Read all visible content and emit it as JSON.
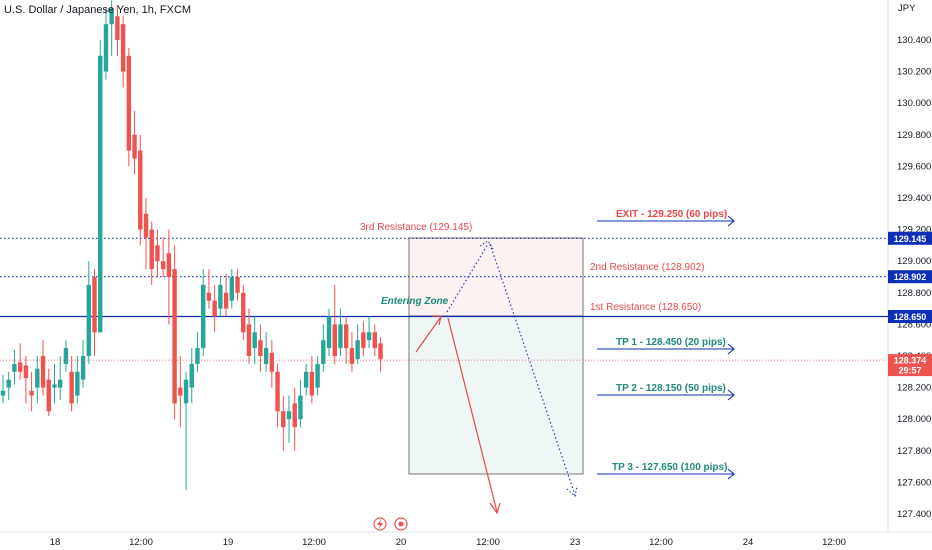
{
  "chart_data": {
    "type": "candlestick",
    "title": "U.S. Dollar / Japanese Yen, 1h, FXCM",
    "currency": "JPY",
    "y_ticks": [
      "130.400",
      "130.200",
      "130.000",
      "129.800",
      "129.600",
      "129.400",
      "129.200",
      "129.000",
      "128.800",
      "128.600",
      "128.400",
      "128.200",
      "128.000",
      "127.800",
      "127.600",
      "127.400"
    ],
    "x_ticks": [
      "18",
      "12:00",
      "19",
      "12:00",
      "20",
      "12:00",
      "23",
      "12:00",
      "24",
      "12:00"
    ],
    "ylim": [
      127.3,
      130.6
    ],
    "last_price": "128.374",
    "countdown": "29:57",
    "colors": {
      "up": "#26a69a",
      "down": "#ef5350",
      "level": "#0d2fb8",
      "zone": "#1d8a7d",
      "res": "#e84848"
    },
    "levels": [
      {
        "id": "r3",
        "value": 129.145,
        "label": "129.145",
        "style": "dotted"
      },
      {
        "id": "r2",
        "value": 128.902,
        "label": "128.902",
        "style": "dotted"
      },
      {
        "id": "r1",
        "value": 128.65,
        "label": "128.650",
        "style": "solid"
      }
    ],
    "annotations": {
      "r3": "3rd Resistance (129.145)",
      "r2": "2nd Resistance (128.902)",
      "r1": "1st Resistance (128.650)",
      "entry": "Entering Zone",
      "exit": "EXIT - 129.250 (60 pips)",
      "tp1": "TP 1 - 128.450 (20 pips)",
      "tp2": "TP 2 - 128.150 (50 pips)",
      "tp3": "TP 3 - 127.650 (100 pips)"
    },
    "candles": [
      [
        128.15,
        128.18,
        128.28,
        128.1
      ],
      [
        128.2,
        128.25,
        128.3,
        128.12
      ],
      [
        128.3,
        128.35,
        128.44,
        128.22
      ],
      [
        128.36,
        128.3,
        128.48,
        128.25
      ],
      [
        128.34,
        128.26,
        128.4,
        128.1
      ],
      [
        128.18,
        128.15,
        128.3,
        128.05
      ],
      [
        128.2,
        128.32,
        128.4,
        128.1
      ],
      [
        128.4,
        128.2,
        128.5,
        128.15
      ],
      [
        128.25,
        128.05,
        128.32,
        128.02
      ],
      [
        128.2,
        128.22,
        128.35,
        128.1
      ],
      [
        128.2,
        128.25,
        128.4,
        128.12
      ],
      [
        128.35,
        128.45,
        128.5,
        128.3
      ],
      [
        128.3,
        128.1,
        128.4,
        128.05
      ],
      [
        128.15,
        128.3,
        128.4,
        128.1
      ],
      [
        128.25,
        128.4,
        128.5,
        128.2
      ],
      [
        128.4,
        128.85,
        129.0,
        128.35
      ],
      [
        128.9,
        128.55,
        128.95,
        128.4
      ],
      [
        128.55,
        130.3,
        130.4,
        128.55
      ],
      [
        130.2,
        130.5,
        130.6,
        130.15
      ],
      [
        130.5,
        130.6,
        130.65,
        130.3
      ],
      [
        130.55,
        130.4,
        130.62,
        130.3
      ],
      [
        130.5,
        130.2,
        130.55,
        130.1
      ],
      [
        130.3,
        129.7,
        130.35,
        129.6
      ],
      [
        129.8,
        129.65,
        129.95,
        129.55
      ],
      [
        129.7,
        129.2,
        129.8,
        129.1
      ],
      [
        129.3,
        129.15,
        129.4,
        128.95
      ],
      [
        129.2,
        128.95,
        129.25,
        128.85
      ],
      [
        129.1,
        129.0,
        129.2,
        128.9
      ],
      [
        129.0,
        128.95,
        129.15,
        128.9
      ],
      [
        129.05,
        128.9,
        129.2,
        128.6
      ],
      [
        128.95,
        128.1,
        129.1,
        128.0
      ],
      [
        128.2,
        128.15,
        128.4,
        127.95
      ],
      [
        128.1,
        128.25,
        128.3,
        127.55
      ],
      [
        128.2,
        128.35,
        128.45,
        128.1
      ],
      [
        128.35,
        128.45,
        128.55,
        128.3
      ],
      [
        128.45,
        128.85,
        128.95,
        128.4
      ],
      [
        128.8,
        128.75,
        128.95,
        128.7
      ],
      [
        128.75,
        128.65,
        128.85,
        128.55
      ],
      [
        128.7,
        128.85,
        128.9,
        128.65
      ],
      [
        128.8,
        128.7,
        128.92,
        128.65
      ],
      [
        128.75,
        128.9,
        128.95,
        128.7
      ],
      [
        128.9,
        128.8,
        128.95,
        128.75
      ],
      [
        128.8,
        128.55,
        128.85,
        128.5
      ],
      [
        128.6,
        128.4,
        128.7,
        128.35
      ],
      [
        128.45,
        128.55,
        128.65,
        128.35
      ],
      [
        128.5,
        128.4,
        128.6,
        128.3
      ],
      [
        128.35,
        128.45,
        128.55,
        128.3
      ],
      [
        128.42,
        128.3,
        128.5,
        128.2
      ],
      [
        128.3,
        128.05,
        128.35,
        127.95
      ],
      [
        128.05,
        127.95,
        128.15,
        127.8
      ],
      [
        128.0,
        128.05,
        128.15,
        127.85
      ],
      [
        128.1,
        127.95,
        128.2,
        127.8
      ],
      [
        128.0,
        128.15,
        128.25,
        127.95
      ],
      [
        128.2,
        128.3,
        128.35,
        128.15
      ],
      [
        128.3,
        128.15,
        128.4,
        128.1
      ],
      [
        128.2,
        128.35,
        128.4,
        128.15
      ],
      [
        128.35,
        128.5,
        128.6,
        128.3
      ],
      [
        128.45,
        128.65,
        128.7,
        128.4
      ],
      [
        128.6,
        128.4,
        128.85,
        128.35
      ],
      [
        128.45,
        128.6,
        128.7,
        128.4
      ],
      [
        128.6,
        128.45,
        128.65,
        128.35
      ],
      [
        128.45,
        128.35,
        128.55,
        128.3
      ],
      [
        128.38,
        128.5,
        128.6,
        128.35
      ],
      [
        128.55,
        128.45,
        128.62,
        128.4
      ],
      [
        128.5,
        128.55,
        128.65,
        128.45
      ],
      [
        128.55,
        128.45,
        128.6,
        128.4
      ],
      [
        128.48,
        128.38,
        128.52,
        128.3
      ]
    ]
  },
  "footer_icons": [
    "lightning-icon",
    "record-icon"
  ]
}
